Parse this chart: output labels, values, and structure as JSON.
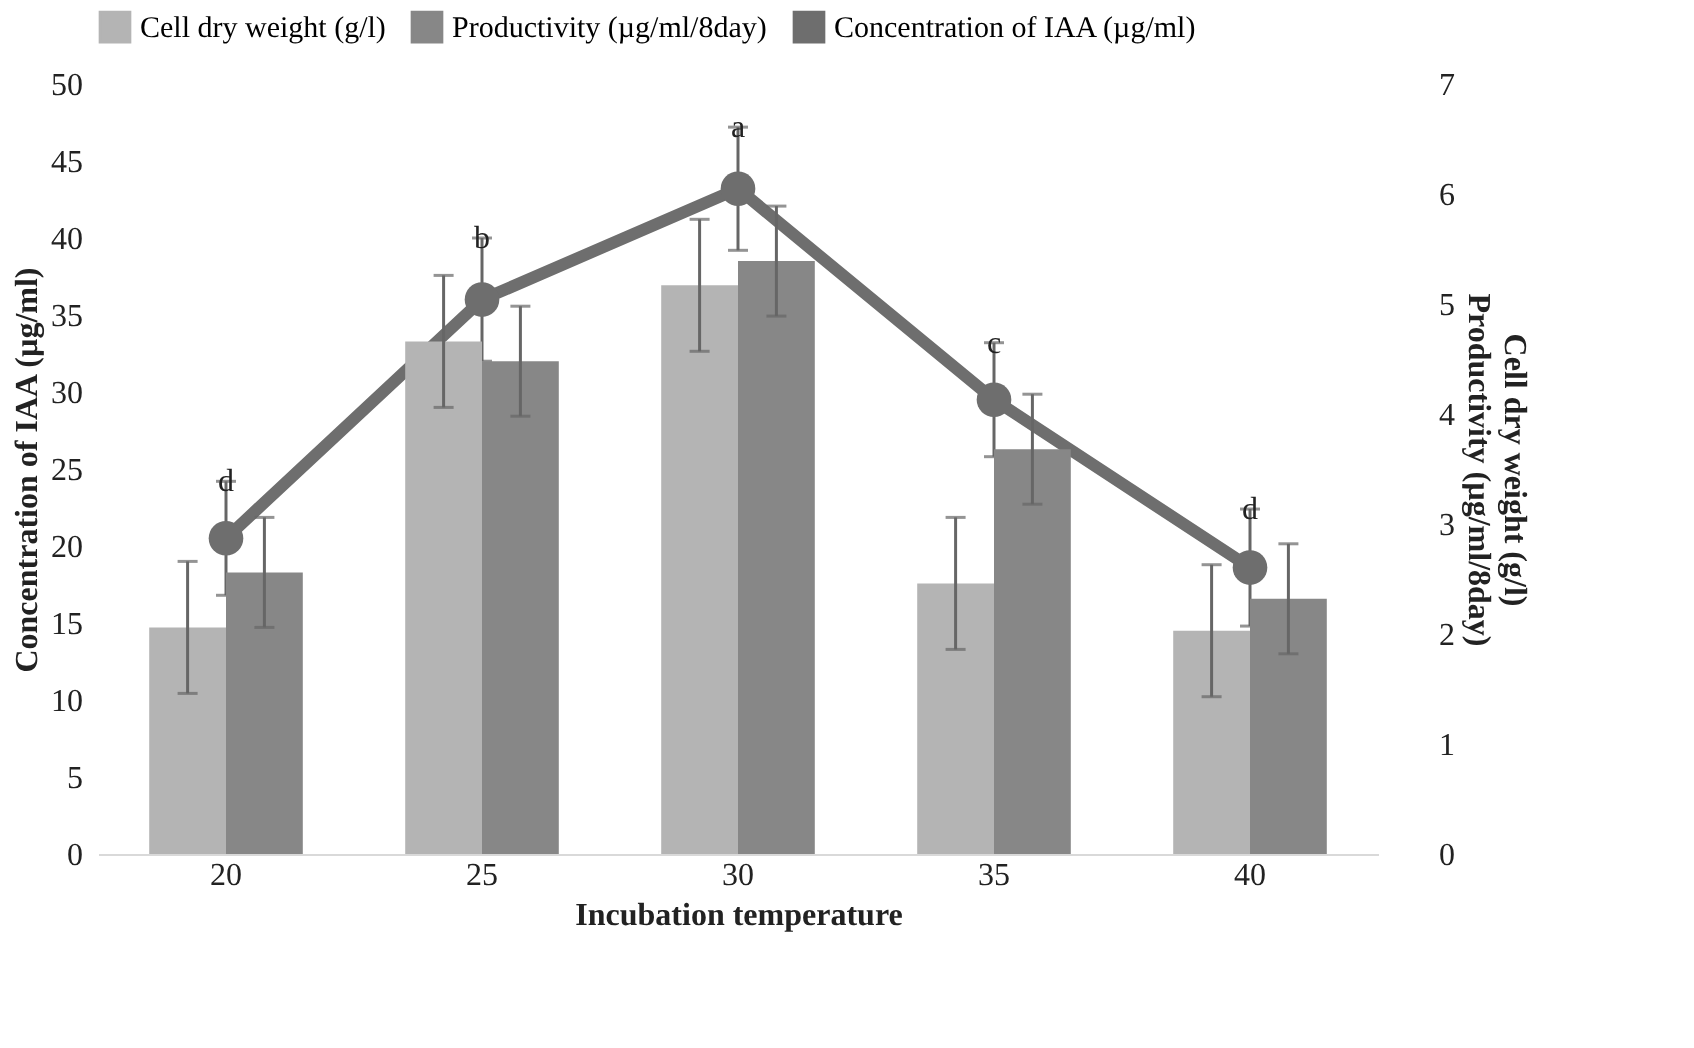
{
  "chart_data": {
    "type": "bar",
    "categories": [
      "20",
      "25",
      "30",
      "35",
      "40"
    ],
    "xlabel": "Incubation temperature",
    "ylabel": "Concentration of IAA (µg/ml)",
    "y2label": "Cell dry weight (g/l)\nProductivity (µg/ml/8day)",
    "ylim": [
      0,
      50
    ],
    "yticks": [
      0,
      5,
      10,
      15,
      20,
      25,
      30,
      35,
      40,
      45,
      50
    ],
    "y2lim": [
      0,
      7
    ],
    "y2ticks": [
      0,
      1,
      2,
      3,
      4,
      5,
      6,
      7
    ],
    "legend": "top",
    "grid": false,
    "marker": "circle",
    "series": [
      {
        "name": "Cell dry weight (g/l)",
        "axis": "y2",
        "color": "#b4b4b4",
        "values": [
          2.06,
          4.66,
          5.17,
          2.46,
          2.03
        ],
        "errors": [
          0.6,
          0.6,
          0.6,
          0.6,
          0.6
        ]
      },
      {
        "name": "Productivity (µg/ml/8day)",
        "axis": "y2",
        "color": "#878787",
        "values": [
          2.56,
          4.48,
          5.39,
          3.68,
          2.32
        ],
        "errors": [
          0.5,
          0.5,
          0.5,
          0.5,
          0.5
        ]
      },
      {
        "name": "Concentration of IAA (µg/ml)",
        "type": "line",
        "color": "#6e6e6e",
        "values": [
          20.5,
          36.0,
          43.2,
          29.5,
          18.6
        ],
        "errors": [
          3.7,
          4,
          4,
          3.7,
          3.8
        ]
      }
    ],
    "annotations": [
      {
        "text": "d",
        "x": "20",
        "y": 24.2
      },
      {
        "text": "b",
        "x": "25",
        "y": 40
      },
      {
        "text": "a",
        "x": "30",
        "y": 47.2
      },
      {
        "text": "c",
        "x": "35",
        "y": 33.2
      },
      {
        "text": "d",
        "x": "40",
        "y": 22.4
      }
    ]
  }
}
